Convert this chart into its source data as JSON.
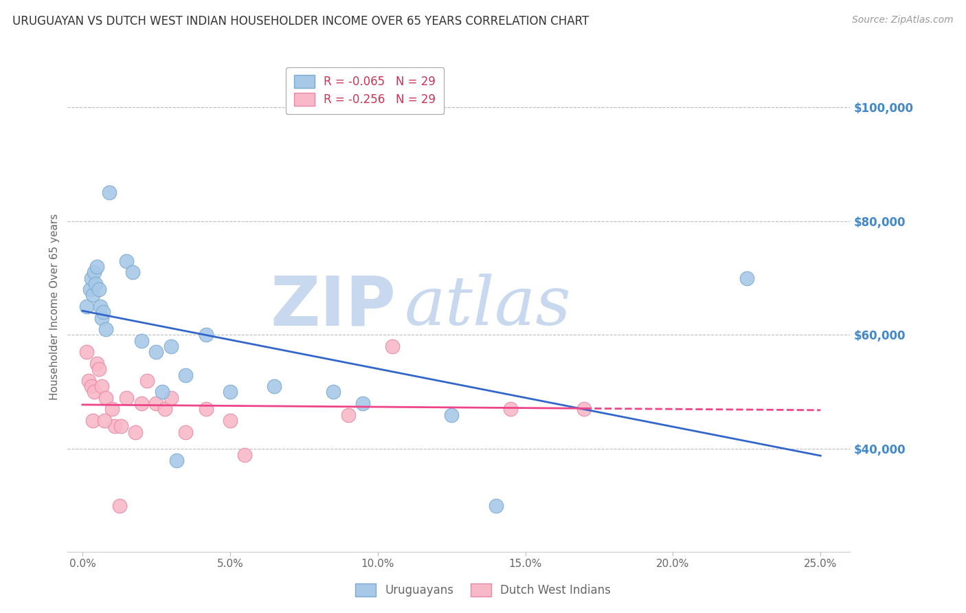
{
  "title": "URUGUAYAN VS DUTCH WEST INDIAN HOUSEHOLDER INCOME OVER 65 YEARS CORRELATION CHART",
  "source": "Source: ZipAtlas.com",
  "xlabel_ticks": [
    "0.0%",
    "5.0%",
    "10.0%",
    "15.0%",
    "20.0%",
    "25.0%"
  ],
  "xlabel_vals": [
    0.0,
    5.0,
    10.0,
    15.0,
    20.0,
    25.0
  ],
  "ylabel": "Householder Income Over 65 years",
  "ylabel_right_ticks": [
    "$100,000",
    "$80,000",
    "$60,000",
    "$40,000"
  ],
  "ylabel_right_vals": [
    100000,
    80000,
    60000,
    40000
  ],
  "ylim": [
    22000,
    108000
  ],
  "xlim": [
    -0.5,
    26.0
  ],
  "uruguayan_x": [
    0.15,
    0.25,
    0.3,
    0.35,
    0.4,
    0.45,
    0.5,
    0.55,
    0.6,
    0.65,
    0.7,
    0.8,
    1.5,
    1.7,
    2.0,
    2.5,
    2.7,
    3.0,
    3.5,
    4.2,
    5.0,
    6.5,
    8.5,
    9.5,
    12.5,
    14.0,
    22.5,
    3.2,
    0.9
  ],
  "uruguayan_y": [
    65000,
    68000,
    70000,
    67000,
    71000,
    69000,
    72000,
    68000,
    65000,
    63000,
    64000,
    61000,
    73000,
    71000,
    59000,
    57000,
    50000,
    58000,
    53000,
    60000,
    50000,
    51000,
    50000,
    48000,
    46000,
    30000,
    70000,
    38000,
    85000
  ],
  "dutch_x": [
    0.15,
    0.2,
    0.3,
    0.4,
    0.5,
    0.55,
    0.65,
    0.8,
    1.0,
    1.1,
    1.3,
    1.5,
    1.8,
    2.0,
    2.2,
    2.5,
    2.8,
    3.0,
    3.5,
    4.2,
    5.0,
    5.5,
    9.0,
    10.5,
    14.5,
    17.0,
    0.35,
    0.75,
    1.25
  ],
  "dutch_y": [
    57000,
    52000,
    51000,
    50000,
    55000,
    54000,
    51000,
    49000,
    47000,
    44000,
    44000,
    49000,
    43000,
    48000,
    52000,
    48000,
    47000,
    49000,
    43000,
    47000,
    45000,
    39000,
    46000,
    58000,
    47000,
    47000,
    45000,
    45000,
    30000
  ],
  "uruguayan_color": "#A8C8E8",
  "dutch_color": "#F8B8C8",
  "uruguayan_edge": "#7AAAD0",
  "dutch_edge": "#E888A8",
  "blue_line_color": "#3366CC",
  "pink_line_color": "#EE4488",
  "legend_uruguayan_R": "R = -0.065",
  "legend_uruguayan_N": "N = 29",
  "legend_dutch_R": "R = -0.256",
  "legend_dutch_N": "N = 29",
  "legend_label_uruguayan": "Uruguayans",
  "legend_label_dutch": "Dutch West Indians",
  "watermark_zip": "ZIP",
  "watermark_atlas": "atlas",
  "watermark_color": "#C8D8EE",
  "grid_color": "#BBBBBB",
  "background_color": "#FFFFFF",
  "title_color": "#333333",
  "source_color": "#999999",
  "right_label_color": "#4488CC",
  "scatter_size": 220
}
